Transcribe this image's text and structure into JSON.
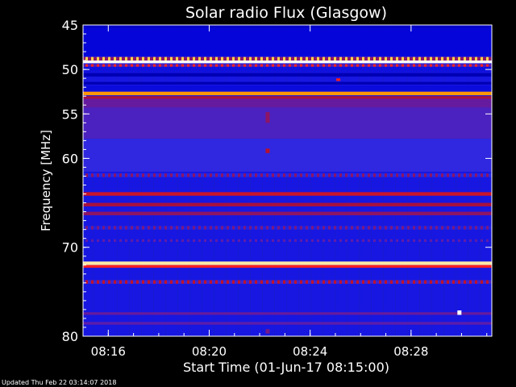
{
  "page": {
    "footer": "Updated Thu Feb 22 03:14:07 2018"
  },
  "chart_data": {
    "type": "heatmap",
    "title": "Solar radio Flux (Glasgow)",
    "xlabel": "Start Time (01-Jun-17 08:15:00)",
    "ylabel": "Frequency [MHz]",
    "x_unit": "minutes",
    "xlim": [
      15.0,
      31.2
    ],
    "ylim": [
      45,
      80
    ],
    "y_inverted": true,
    "x_ticks": [
      {
        "value": 16,
        "label": "08:16"
      },
      {
        "value": 20,
        "label": "08:20"
      },
      {
        "value": 24,
        "label": "08:24"
      },
      {
        "value": 28,
        "label": "08:28"
      }
    ],
    "y_ticks": [
      {
        "value": 45,
        "label": "45"
      },
      {
        "value": 50,
        "label": "50"
      },
      {
        "value": 55,
        "label": "55"
      },
      {
        "value": 60,
        "label": "60"
      },
      {
        "value": 70,
        "label": "70"
      },
      {
        "value": 80,
        "label": "80"
      }
    ],
    "colorscale": [
      "#000060",
      "#0000d8",
      "#2a2ae8",
      "#6a1a9a",
      "#b01030",
      "#ff2020",
      "#ffc000",
      "#ffffff"
    ],
    "background_level": 0.22,
    "bands": [
      {
        "freq_from": 45.0,
        "freq_to": 45.3,
        "level": 0.12
      },
      {
        "freq_from": 45.3,
        "freq_to": 48.5,
        "level": 0.16
      },
      {
        "freq_from": 48.6,
        "freq_to": 49.0,
        "level": 0.9,
        "dotted": true
      },
      {
        "freq_from": 49.0,
        "freq_to": 49.3,
        "level": 1.0
      },
      {
        "freq_from": 49.4,
        "freq_to": 49.7,
        "level": 0.72,
        "dotted": true
      },
      {
        "freq_from": 49.7,
        "freq_to": 50.3,
        "level": 0.2
      },
      {
        "freq_from": 50.4,
        "freq_to": 50.8,
        "level": 0.1
      },
      {
        "freq_from": 51.4,
        "freq_to": 51.7,
        "level": 0.1
      },
      {
        "freq_from": 51.8,
        "freq_to": 52.5,
        "level": 0.18
      },
      {
        "freq_from": 52.5,
        "freq_to": 52.9,
        "level": 0.82
      },
      {
        "freq_from": 53.0,
        "freq_to": 53.3,
        "level": 0.55
      },
      {
        "freq_from": 53.3,
        "freq_to": 54.3,
        "level": 0.42
      },
      {
        "freq_from": 54.3,
        "freq_to": 57.8,
        "level": 0.36
      },
      {
        "freq_from": 57.8,
        "freq_to": 61.5,
        "level": 0.3
      },
      {
        "freq_from": 61.7,
        "freq_to": 62.1,
        "level": 0.5,
        "dotted": true
      },
      {
        "freq_from": 63.8,
        "freq_to": 64.2,
        "level": 0.62
      },
      {
        "freq_from": 65.0,
        "freq_to": 65.4,
        "level": 0.55
      },
      {
        "freq_from": 66.0,
        "freq_to": 66.4,
        "level": 0.5
      },
      {
        "freq_from": 67.6,
        "freq_to": 68.0,
        "level": 0.46,
        "dotted": true
      },
      {
        "freq_from": 69.1,
        "freq_to": 69.4,
        "level": 0.4,
        "dotted": true
      },
      {
        "freq_from": 71.6,
        "freq_to": 72.0,
        "level": 0.95
      },
      {
        "freq_from": 72.0,
        "freq_to": 72.3,
        "level": 0.7
      },
      {
        "freq_from": 73.7,
        "freq_to": 74.1,
        "level": 0.6,
        "dotted": true
      },
      {
        "freq_from": 77.3,
        "freq_to": 77.6,
        "level": 0.42
      },
      {
        "freq_from": 78.4,
        "freq_to": 78.7,
        "level": 0.4
      }
    ],
    "hotspots": [
      {
        "time": 22.3,
        "freq_from": 54.8,
        "freq_to": 56.0,
        "level": 0.5
      },
      {
        "time": 22.3,
        "freq_from": 58.9,
        "freq_to": 59.4,
        "level": 0.58
      },
      {
        "time": 25.1,
        "freq_from": 51.0,
        "freq_to": 51.3,
        "level": 0.7
      },
      {
        "time": 29.9,
        "freq_from": 77.1,
        "freq_to": 77.6,
        "level": 1.0
      },
      {
        "time": 22.3,
        "freq_from": 79.2,
        "freq_to": 79.7,
        "level": 0.45
      }
    ]
  }
}
